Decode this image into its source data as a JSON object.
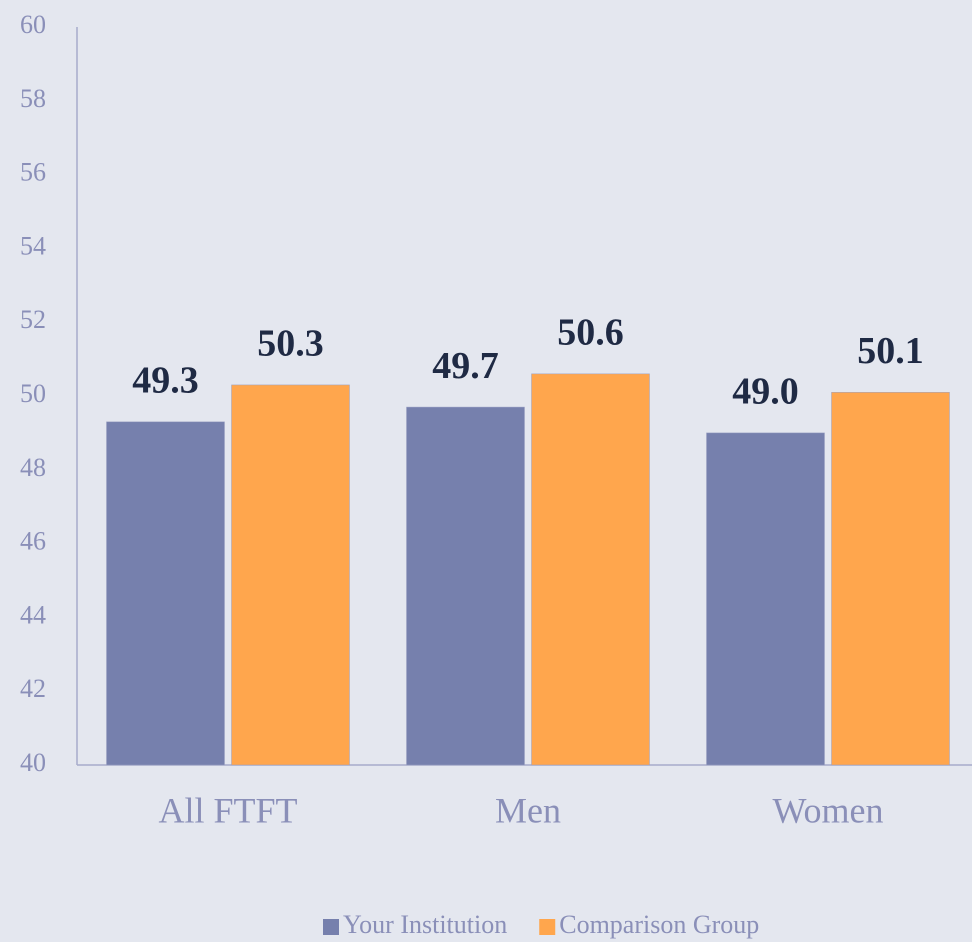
{
  "chart_data": {
    "type": "bar",
    "categories": [
      "All FTFT",
      "Men",
      "Women"
    ],
    "series": [
      {
        "name": "Your Institution",
        "color": "#7680ad",
        "values": [
          49.3,
          49.7,
          49.0
        ],
        "value_labels": [
          "49.3",
          "49.7",
          "49.0"
        ]
      },
      {
        "name": "Comparison Group",
        "color": "#ffa64d",
        "values": [
          50.3,
          50.6,
          50.1
        ],
        "value_labels": [
          "50.3",
          "50.6",
          "50.1"
        ]
      }
    ],
    "ylim": [
      40,
      60
    ],
    "yticks": [
      40,
      42,
      44,
      46,
      48,
      50,
      52,
      54,
      56,
      58,
      60
    ],
    "grid": false,
    "legend": "bottom"
  }
}
